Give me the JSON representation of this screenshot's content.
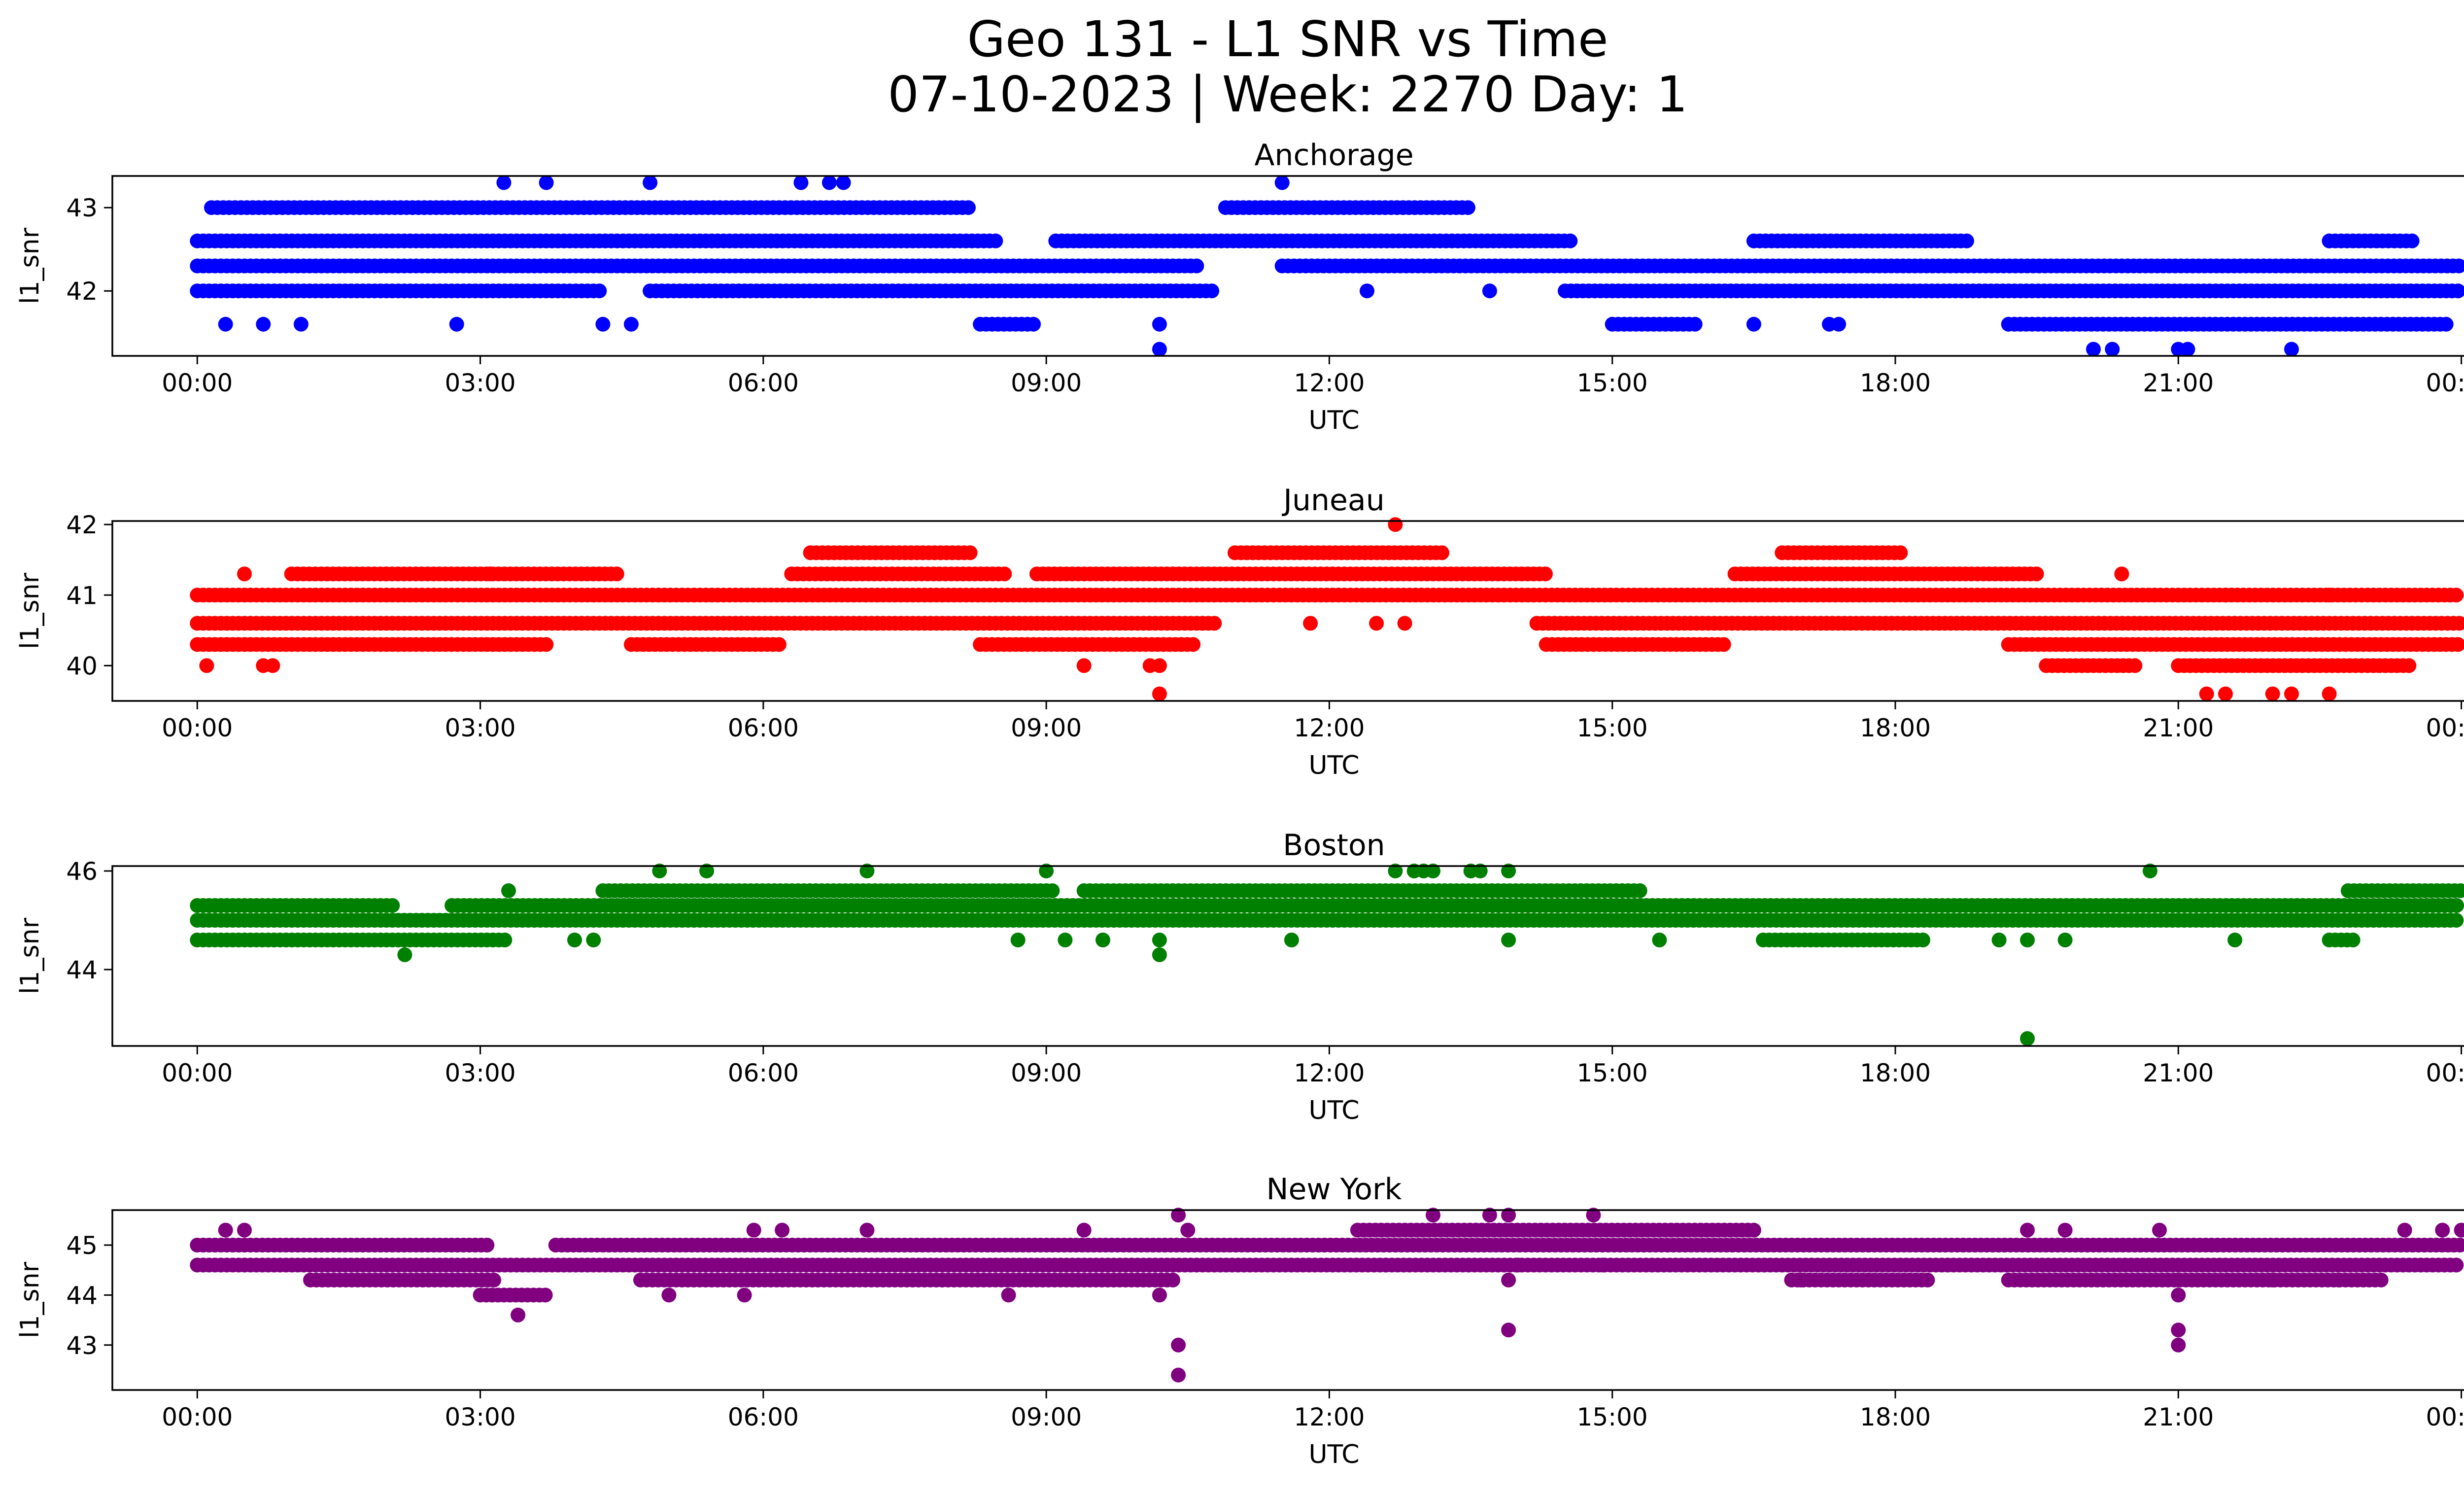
{
  "figure": {
    "title_line1": "Geo 131 - L1 SNR vs Time",
    "title_line2": "07-10-2023 | Week: 2270 Day: 1"
  },
  "chart_data": [
    {
      "type": "scatter",
      "title": "Anchorage",
      "xlabel": "UTC",
      "ylabel": "l1_snr",
      "color": "#0000ff",
      "xlim": [
        -0.9,
        25.0
      ],
      "ylim": [
        41.22,
        43.38
      ],
      "x_ticks": [
        "00:00",
        "03:00",
        "06:00",
        "09:00",
        "12:00",
        "15:00",
        "18:00",
        "21:00",
        "00:00"
      ],
      "y_ticks": [
        42,
        43
      ],
      "bands": [
        {
          "y": 42.0,
          "ranges": [
            [
              0.0,
              4.3
            ],
            [
              4.8,
              10.8
            ],
            [
              14.5,
              24.0
            ]
          ]
        },
        {
          "y": 42.3,
          "ranges": [
            [
              0.0,
              10.6
            ],
            [
              11.5,
              24.0
            ]
          ]
        },
        {
          "y": 42.6,
          "ranges": [
            [
              0.0,
              8.5
            ],
            [
              9.1,
              14.6
            ],
            [
              16.5,
              18.8
            ],
            [
              22.6,
              23.5
            ]
          ]
        },
        {
          "y": 43.0,
          "ranges": [
            [
              0.15,
              8.2
            ],
            [
              10.9,
              13.5
            ]
          ]
        },
        {
          "y": 41.6,
          "ranges": [
            [
              8.3,
              8.9
            ],
            [
              15.0,
              15.9
            ],
            [
              19.2,
              23.9
            ]
          ]
        }
      ],
      "points": [
        [
          0.3,
          41.6
        ],
        [
          0.7,
          41.6
        ],
        [
          1.1,
          41.6
        ],
        [
          2.75,
          41.6
        ],
        [
          4.3,
          41.6
        ],
        [
          4.6,
          41.6
        ],
        [
          10.2,
          41.6
        ],
        [
          10.2,
          41.3
        ],
        [
          16.5,
          41.6
        ],
        [
          17.3,
          41.6
        ],
        [
          17.4,
          41.6
        ],
        [
          3.25,
          43.3
        ],
        [
          3.7,
          43.3
        ],
        [
          4.8,
          43.3
        ],
        [
          6.4,
          43.3
        ],
        [
          6.7,
          43.3
        ],
        [
          6.85,
          43.3
        ],
        [
          11.5,
          43.3
        ],
        [
          22.6,
          42.6
        ],
        [
          12.4,
          42.0
        ],
        [
          13.7,
          42.0
        ],
        [
          20.1,
          41.3
        ],
        [
          20.3,
          41.3
        ],
        [
          21.0,
          41.3
        ],
        [
          21.1,
          41.3
        ],
        [
          22.2,
          41.3
        ]
      ]
    },
    {
      "type": "scatter",
      "title": "Juneau",
      "xlabel": "UTC",
      "ylabel": "l1_snr",
      "color": "#ff0000",
      "xlim": [
        -0.9,
        25.0
      ],
      "ylim": [
        39.5,
        42.05
      ],
      "x_ticks": [
        "00:00",
        "03:00",
        "06:00",
        "09:00",
        "12:00",
        "15:00",
        "18:00",
        "21:00",
        "00:00"
      ],
      "y_ticks": [
        40,
        41,
        42
      ],
      "bands": [
        {
          "y": 40.3,
          "ranges": [
            [
              0.0,
              3.7
            ],
            [
              4.6,
              6.2
            ],
            [
              8.3,
              10.6
            ],
            [
              14.3,
              16.2
            ],
            [
              19.2,
              24.0
            ]
          ]
        },
        {
          "y": 40.6,
          "ranges": [
            [
              0.0,
              10.8
            ],
            [
              14.2,
              24.0
            ]
          ]
        },
        {
          "y": 41.0,
          "ranges": [
            [
              0.0,
              24.0
            ]
          ]
        },
        {
          "y": 41.3,
          "ranges": [
            [
              1.0,
              4.5
            ],
            [
              6.3,
              8.6
            ],
            [
              8.9,
              14.3
            ],
            [
              16.3,
              19.5
            ]
          ]
        },
        {
          "y": 41.6,
          "ranges": [
            [
              6.5,
              8.2
            ],
            [
              11.0,
              13.2
            ],
            [
              16.8,
              18.1
            ]
          ]
        },
        {
          "y": 40.0,
          "ranges": [
            [
              19.6,
              20.6
            ],
            [
              21.0,
              23.5
            ]
          ]
        }
      ],
      "points": [
        [
          0.1,
          40.0
        ],
        [
          0.7,
          40.0
        ],
        [
          0.8,
          40.0
        ],
        [
          0.5,
          41.3
        ],
        [
          2.0,
          41.3
        ],
        [
          3.1,
          41.3
        ],
        [
          9.4,
          40.0
        ],
        [
          10.1,
          40.0
        ],
        [
          10.2,
          40.0
        ],
        [
          10.2,
          39.6
        ],
        [
          12.7,
          42.0
        ],
        [
          11.8,
          40.6
        ],
        [
          12.5,
          40.6
        ],
        [
          12.8,
          40.6
        ],
        [
          21.3,
          39.6
        ],
        [
          21.5,
          39.6
        ],
        [
          22.0,
          39.6
        ],
        [
          22.2,
          39.6
        ],
        [
          22.6,
          39.6
        ],
        [
          20.4,
          41.3
        ],
        [
          21.5,
          41.0
        ],
        [
          22.6,
          41.0
        ]
      ]
    },
    {
      "type": "scatter",
      "title": "Boston",
      "xlabel": "UTC",
      "ylabel": "l1_snr",
      "color": "#008000",
      "xlim": [
        -0.9,
        25.0
      ],
      "ylim": [
        42.45,
        46.1
      ],
      "x_ticks": [
        "00:00",
        "03:00",
        "06:00",
        "09:00",
        "12:00",
        "15:00",
        "18:00",
        "21:00",
        "00:00"
      ],
      "y_ticks": [
        44,
        46
      ],
      "bands": [
        {
          "y": 44.6,
          "ranges": [
            [
              0.0,
              3.3
            ],
            [
              16.6,
              18.3
            ],
            [
              22.6,
              22.9
            ]
          ]
        },
        {
          "y": 45.0,
          "ranges": [
            [
              0.0,
              24.0
            ]
          ]
        },
        {
          "y": 45.3,
          "ranges": [
            [
              0.0,
              2.1
            ],
            [
              2.7,
              24.0
            ]
          ]
        },
        {
          "y": 45.6,
          "ranges": [
            [
              4.3,
              9.1
            ],
            [
              9.4,
              15.3
            ],
            [
              22.8,
              24.0
            ]
          ]
        }
      ],
      "points": [
        [
          2.2,
          44.3
        ],
        [
          10.2,
          44.3
        ],
        [
          10.2,
          44.6
        ],
        [
          11.6,
          44.6
        ],
        [
          3.3,
          45.6
        ],
        [
          4.0,
          44.6
        ],
        [
          4.2,
          44.6
        ],
        [
          4.9,
          46.0
        ],
        [
          5.4,
          46.0
        ],
        [
          7.1,
          46.0
        ],
        [
          9.0,
          46.0
        ],
        [
          12.7,
          46.0
        ],
        [
          12.9,
          46.0
        ],
        [
          13.0,
          46.0
        ],
        [
          13.1,
          46.0
        ],
        [
          13.5,
          46.0
        ],
        [
          13.6,
          46.0
        ],
        [
          13.9,
          46.0
        ],
        [
          8.7,
          44.6
        ],
        [
          9.2,
          44.6
        ],
        [
          9.6,
          44.6
        ],
        [
          13.9,
          44.6
        ],
        [
          15.5,
          44.6
        ],
        [
          19.1,
          44.6
        ],
        [
          19.4,
          44.6
        ],
        [
          19.4,
          42.6
        ],
        [
          19.8,
          44.6
        ],
        [
          21.6,
          44.6
        ],
        [
          20.7,
          46.0
        ]
      ]
    },
    {
      "type": "scatter",
      "title": "New York",
      "xlabel": "UTC",
      "ylabel": "l1_snr",
      "color": "#800080",
      "xlim": [
        -0.9,
        25.0
      ],
      "ylim": [
        42.1,
        45.7
      ],
      "x_ticks": [
        "00:00",
        "03:00",
        "06:00",
        "09:00",
        "12:00",
        "15:00",
        "18:00",
        "21:00",
        "00:00"
      ],
      "y_ticks": [
        43,
        44,
        45
      ],
      "bands": [
        {
          "y": 44.6,
          "ranges": [
            [
              0.0,
              24.0
            ]
          ]
        },
        {
          "y": 45.0,
          "ranges": [
            [
              0.0,
              3.1
            ],
            [
              3.8,
              24.0
            ]
          ]
        },
        {
          "y": 44.3,
          "ranges": [
            [
              1.2,
              3.2
            ],
            [
              4.7,
              10.4
            ],
            [
              16.9,
              18.4
            ],
            [
              19.2,
              23.2
            ]
          ]
        },
        {
          "y": 45.3,
          "ranges": [
            [
              12.3,
              16.5
            ]
          ]
        },
        {
          "y": 44.0,
          "ranges": [
            [
              3.0,
              3.7
            ]
          ]
        }
      ],
      "points": [
        [
          0.3,
          45.3
        ],
        [
          0.5,
          45.3
        ],
        [
          3.4,
          43.6
        ],
        [
          5.0,
          44.0
        ],
        [
          5.8,
          44.0
        ],
        [
          5.9,
          45.3
        ],
        [
          6.2,
          45.3
        ],
        [
          7.1,
          45.3
        ],
        [
          8.6,
          44.0
        ],
        [
          9.4,
          45.3
        ],
        [
          10.2,
          44.0
        ],
        [
          10.4,
          45.6
        ],
        [
          10.4,
          43.0
        ],
        [
          10.4,
          42.4
        ],
        [
          10.5,
          45.3
        ],
        [
          12.6,
          44.6
        ],
        [
          13.1,
          45.6
        ],
        [
          13.7,
          45.6
        ],
        [
          13.9,
          45.6
        ],
        [
          14.0,
          44.6
        ],
        [
          13.9,
          44.3
        ],
        [
          13.9,
          43.3
        ],
        [
          14.8,
          45.6
        ],
        [
          14.9,
          44.6
        ],
        [
          17.0,
          44.3
        ],
        [
          19.4,
          45.3
        ],
        [
          19.8,
          45.3
        ],
        [
          20.8,
          45.3
        ],
        [
          21.0,
          44.3
        ],
        [
          21.0,
          44.0
        ],
        [
          21.0,
          43.3
        ],
        [
          21.0,
          43.0
        ],
        [
          22.0,
          44.3
        ],
        [
          22.7,
          44.3
        ],
        [
          23.4,
          45.3
        ],
        [
          23.8,
          45.3
        ],
        [
          24.0,
          45.3
        ]
      ]
    }
  ]
}
